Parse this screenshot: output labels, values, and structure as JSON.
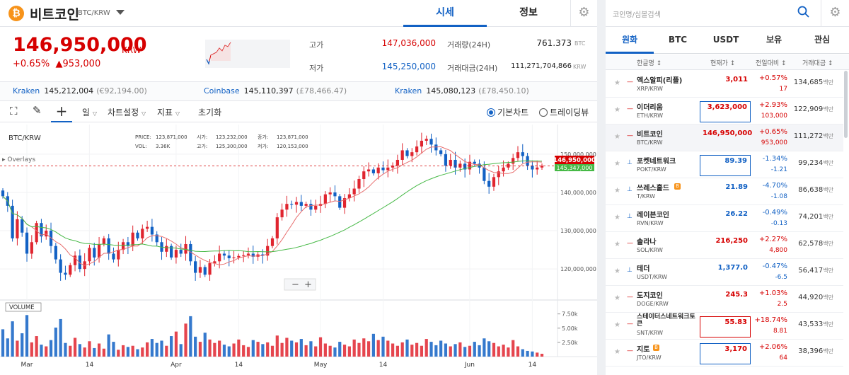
{
  "header": {
    "coin_name": "비트코인",
    "pair": "BTC/KRW",
    "tab_quote": "시세",
    "tab_info": "정보"
  },
  "price": {
    "current": "146,950,000",
    "unit": "KRW",
    "change_pct": "+0.65%",
    "change_abs": "▲953,000"
  },
  "stats": {
    "high_label": "고가",
    "high": "147,036,000",
    "low_label": "저가",
    "low": "145,250,000",
    "vol_label": "거래량(24H)",
    "vol": "761.373",
    "vol_unit": "BTC",
    "amt_label": "거래대금(24H)",
    "amt": "111,271,704,866",
    "amt_unit": "KRW"
  },
  "exchanges": [
    {
      "name": "Kraken",
      "value": "145,212,004",
      "sub": "(€92,194.00)"
    },
    {
      "name": "Coinbase",
      "value": "145,110,397",
      "sub": "(£78,466.47)"
    },
    {
      "name": "Kraken",
      "value": "145,080,123",
      "sub": "(£78,450.10)"
    }
  ],
  "toolbar": {
    "period": "일",
    "chart_settings": "차트설정",
    "indicators": "지표",
    "reset": "초기화",
    "basic_chart": "기본차트",
    "trading_view": "트레이딩뷰"
  },
  "chart_legend": {
    "pair": "BTC/KRW",
    "overlays": "Overlays",
    "volume": "VOLUME",
    "price_label": "PRICE:",
    "price_val": "123,871,000",
    "vol_label": "VOL:",
    "vol_val": "3.36K",
    "open_label": "시가:",
    "open_val": "123,232,000",
    "high_label": "고가:",
    "high_val": "125,300,000",
    "close_label": "종가:",
    "close_val": "123,871,000",
    "low_label": "저가:",
    "low_val": "120,153,000",
    "current_tag": "146,950,000",
    "ma_tag": "145,347,000"
  },
  "chart_data": {
    "type": "candlestick",
    "y_ticks": [
      "150,000,000",
      "140,000,000",
      "130,000,000",
      "120,000,000"
    ],
    "y_tick_values": [
      150000000,
      140000000,
      130000000,
      120000000
    ],
    "vol_ticks": [
      "7.50k",
      "5.00k",
      "2.50k"
    ],
    "vol_tick_values": [
      7500,
      5000,
      2500
    ],
    "x_ticks": [
      "Mar",
      "14",
      "Apr",
      "14",
      "May",
      "14",
      "Jun",
      "14"
    ],
    "x_tick_days": [
      0,
      13,
      31,
      44,
      61,
      74,
      92,
      105
    ],
    "current_price": 146950000,
    "closes": [
      139.0,
      136.5,
      128.0,
      133.0,
      129.5,
      124.0,
      127.0,
      132.0,
      128.5,
      130.0,
      126.0,
      122.5,
      119.0,
      118.5,
      121.0,
      123.5,
      120.0,
      122.0,
      125.5,
      123.0,
      126.5,
      128.0,
      124.0,
      122.5,
      125.0,
      127.0,
      126.0,
      129.5,
      128.0,
      130.5,
      131.0,
      129.0,
      127.0,
      124.5,
      126.0,
      123.0,
      125.0,
      124.0,
      126.5,
      122.0,
      119.0,
      120.5,
      118.5,
      121.5,
      122.0,
      124.0,
      123.5,
      122.8,
      123.0,
      123.4,
      123.6,
      124.0,
      123.2,
      123.8,
      123.5,
      126.0,
      128.0,
      133.5,
      135.5,
      137.0,
      136.8,
      137.5,
      136.5,
      137.0,
      135.5,
      136.5,
      137.0,
      139.5,
      140.0,
      139.0,
      136.0,
      138.5,
      139.5,
      141.0,
      143.5,
      145.5,
      146.0,
      145.0,
      146.5,
      145.8,
      146.5,
      147.0,
      148.5,
      151.0,
      149.5,
      150.5,
      152.0,
      153.5,
      154.0,
      152.5,
      151.0,
      150.0,
      147.0,
      148.5,
      146.5,
      147.5,
      146.0,
      148.0,
      147.5,
      146.5,
      143.0,
      141.5,
      144.0,
      145.5,
      146.5,
      147.5,
      149.0,
      150.5,
      149.5,
      147.0,
      146.0,
      146.5,
      146.95
    ],
    "volumes": [
      4800,
      3200,
      6200,
      2800,
      4100,
      7300,
      2500,
      3600,
      2100,
      1800,
      2900,
      5100,
      6600,
      2400,
      1900,
      3300,
      2200,
      1600,
      2700,
      1500,
      2300,
      1400,
      3900,
      2600,
      1200,
      2000,
      1700,
      1900,
      1300,
      1600,
      2500,
      3100,
      2400,
      2800,
      1900,
      3600,
      4400,
      2200,
      5800,
      7100,
      3500,
      2600,
      4200,
      3000,
      2400,
      2800,
      2100,
      1800,
      2300,
      3000,
      2000,
      1700,
      2900,
      2600,
      2200,
      2500,
      1900,
      3700,
      2400,
      3300,
      2800,
      2500,
      3100,
      2000,
      2700,
      1800,
      3400,
      2300,
      1900,
      1600,
      2600,
      2100,
      1800,
      3000,
      2400,
      3200,
      2700,
      4000,
      2900,
      3500,
      2800,
      2300,
      1900,
      2500,
      3000,
      2100,
      2400,
      1900,
      3100,
      2600,
      2000,
      2800,
      2300,
      1800,
      2200,
      2500,
      1700,
      1900,
      2600,
      2000,
      3200,
      2700,
      2400,
      1800,
      2100,
      1600,
      2900,
      1800,
      1300,
      1000,
      900,
      700,
      500
    ]
  },
  "sidebar": {
    "search_placeholder": "코인명/심볼검색",
    "tabs": [
      "원화",
      "BTC",
      "USDT",
      "보유",
      "관심"
    ],
    "columns": [
      "한글명 ↕",
      "현재가 ↕",
      "전일대비 ↕",
      "거래대금 ↕"
    ],
    "million_unit": "백만",
    "coins": [
      {
        "name": "엑스알피(리플)",
        "symbol": "XRP/KRW",
        "price": "3,011",
        "pct": "+0.57%",
        "chg": "17",
        "vol": "134,685",
        "dir": "up",
        "box": ""
      },
      {
        "name": "이더리움",
        "symbol": "ETH/KRW",
        "price": "3,623,000",
        "pct": "+2.93%",
        "chg": "103,000",
        "vol": "122,909",
        "dir": "up",
        "box": "blue"
      },
      {
        "name": "비트코인",
        "symbol": "BTC/KRW",
        "price": "146,950,000",
        "pct": "+0.65%",
        "chg": "953,000",
        "vol": "111,272",
        "dir": "up",
        "box": "",
        "selected": true
      },
      {
        "name": "포켓네트워크",
        "symbol": "POKT/KRW",
        "price": "89.39",
        "pct": "-1.34%",
        "chg": "-1.21",
        "vol": "99,234",
        "dir": "dn",
        "box": "blue"
      },
      {
        "name": "쓰레스홀드",
        "symbol": "T/KRW",
        "price": "21.89",
        "pct": "-4.70%",
        "chg": "-1.08",
        "vol": "86,638",
        "dir": "dn",
        "box": "",
        "badge": "B"
      },
      {
        "name": "레이븐코인",
        "symbol": "RVN/KRW",
        "price": "26.22",
        "pct": "-0.49%",
        "chg": "-0.13",
        "vol": "74,201",
        "dir": "dn",
        "box": ""
      },
      {
        "name": "솔라나",
        "symbol": "SOL/KRW",
        "price": "216,250",
        "pct": "+2.27%",
        "chg": "4,800",
        "vol": "62,578",
        "dir": "up",
        "box": ""
      },
      {
        "name": "테더",
        "symbol": "USDT/KRW",
        "price": "1,377.0",
        "pct": "-0.47%",
        "chg": "-6.5",
        "vol": "56,417",
        "dir": "dn",
        "box": ""
      },
      {
        "name": "도지코인",
        "symbol": "DOGE/KRW",
        "price": "245.3",
        "pct": "+1.03%",
        "chg": "2.5",
        "vol": "44,920",
        "dir": "up",
        "box": ""
      },
      {
        "name": "스테이터스네트워크토큰",
        "symbol": "SNT/KRW",
        "price": "55.83",
        "pct": "+18.74%",
        "chg": "8.81",
        "vol": "43,533",
        "dir": "up",
        "box": "red"
      },
      {
        "name": "지토",
        "symbol": "JTO/KRW",
        "price": "3,170",
        "pct": "+2.06%",
        "chg": "64",
        "vol": "38,396",
        "dir": "up",
        "box": "blue",
        "badge": "B"
      }
    ]
  },
  "colors": {
    "up": "#d60000",
    "down": "#1261c4",
    "accent": "#1261c4",
    "ma_short": "#e86f6f",
    "ma_long": "#46b946"
  }
}
